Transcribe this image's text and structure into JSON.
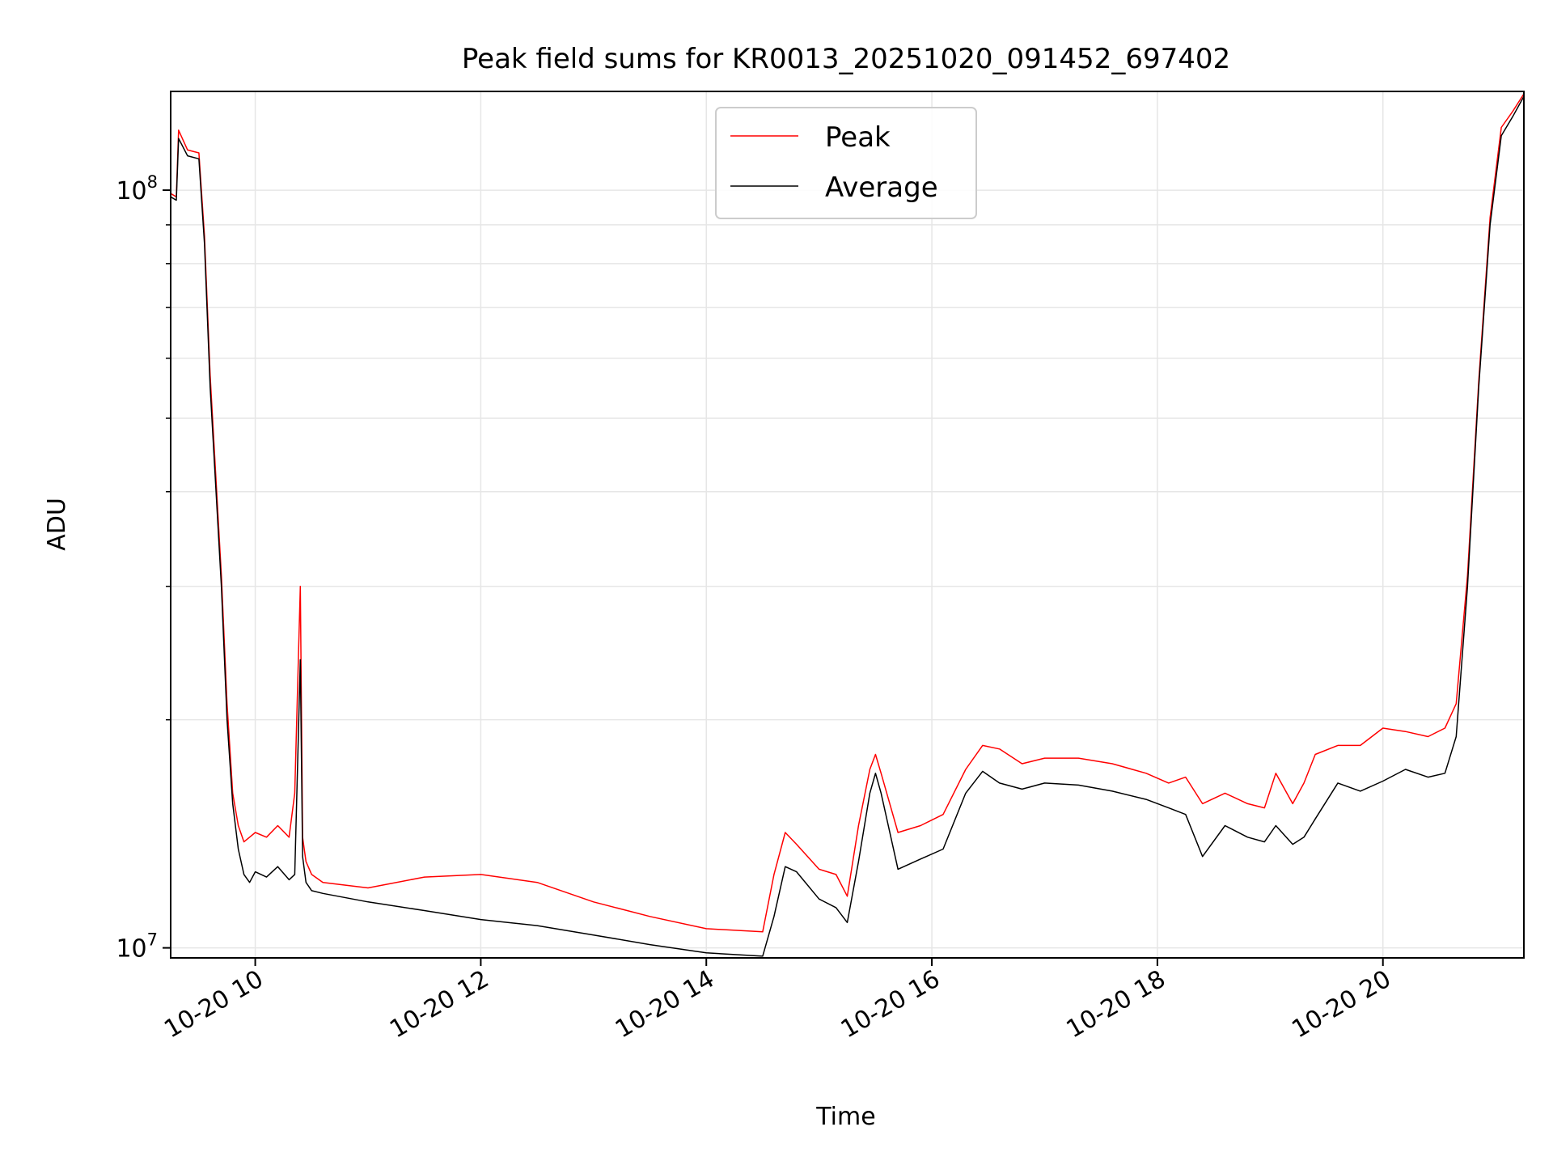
{
  "chart_data": {
    "type": "line",
    "title": "Peak field sums for KR0013_20251020_091452_697402",
    "xlabel": "Time",
    "ylabel": "ADU",
    "yscale": "log",
    "xlim": [
      9.25,
      21.25
    ],
    "ylim": [
      9700000,
      135000000
    ],
    "x_ticks": [
      {
        "value": 10,
        "label": "10-20 10"
      },
      {
        "value": 12,
        "label": "10-20 12"
      },
      {
        "value": 14,
        "label": "10-20 14"
      },
      {
        "value": 16,
        "label": "10-20 16"
      },
      {
        "value": 18,
        "label": "10-20 18"
      },
      {
        "value": 20,
        "label": "10-20 20"
      }
    ],
    "y_major_ticks": [
      {
        "value": 10000000,
        "base": "10",
        "exp": "7"
      },
      {
        "value": 100000000,
        "base": "10",
        "exp": "8"
      }
    ],
    "y_minor_ticks": [
      20000000,
      30000000,
      40000000,
      50000000,
      60000000,
      70000000,
      80000000,
      90000000
    ],
    "grid": true,
    "legend": {
      "placement": "top-center",
      "entries": [
        "Peak",
        "Average"
      ]
    },
    "series": [
      {
        "name": "Average",
        "color": "#000000",
        "x": [
          9.25,
          9.3,
          9.32,
          9.4,
          9.5,
          9.55,
          9.6,
          9.7,
          9.75,
          9.8,
          9.85,
          9.9,
          9.95,
          10.0,
          10.1,
          10.2,
          10.3,
          10.35,
          10.4,
          10.42,
          10.45,
          10.5,
          10.6,
          11.0,
          11.5,
          12.0,
          12.5,
          13.0,
          13.5,
          14.0,
          14.5,
          14.6,
          14.7,
          14.8,
          15.0,
          15.15,
          15.25,
          15.35,
          15.45,
          15.5,
          15.55,
          15.7,
          15.9,
          16.1,
          16.3,
          16.45,
          16.6,
          16.8,
          17.0,
          17.3,
          17.6,
          17.9,
          18.1,
          18.25,
          18.4,
          18.6,
          18.8,
          18.95,
          19.05,
          19.2,
          19.3,
          19.4,
          19.6,
          19.8,
          20.0,
          20.2,
          20.4,
          20.55,
          20.65,
          20.75,
          20.85,
          20.95,
          21.05,
          21.15,
          21.25
        ],
        "y": [
          98000000,
          97000000,
          117000000,
          111000000,
          110000000,
          85000000,
          55000000,
          30000000,
          20000000,
          15500000,
          13500000,
          12500000,
          12200000,
          12600000,
          12400000,
          12800000,
          12300000,
          12500000,
          24000000,
          13200000,
          12200000,
          11900000,
          11800000,
          11500000,
          11200000,
          10900000,
          10700000,
          10400000,
          10100000,
          9850000,
          9750000,
          11000000,
          12800000,
          12600000,
          11600000,
          11300000,
          10800000,
          13000000,
          16000000,
          17000000,
          16000000,
          12700000,
          13100000,
          13500000,
          16000000,
          17100000,
          16500000,
          16200000,
          16500000,
          16400000,
          16100000,
          15700000,
          15300000,
          15000000,
          13200000,
          14500000,
          14000000,
          13800000,
          14500000,
          13700000,
          14000000,
          14800000,
          16500000,
          16100000,
          16600000,
          17200000,
          16800000,
          17000000,
          19000000,
          30000000,
          55000000,
          90000000,
          118000000,
          125000000,
          133000000
        ]
      },
      {
        "name": "Peak",
        "color": "#ff0000",
        "x": [
          9.25,
          9.3,
          9.32,
          9.4,
          9.5,
          9.55,
          9.6,
          9.7,
          9.75,
          9.8,
          9.85,
          9.9,
          9.95,
          10.0,
          10.1,
          10.2,
          10.3,
          10.35,
          10.4,
          10.42,
          10.45,
          10.5,
          10.6,
          11.0,
          11.5,
          12.0,
          12.5,
          13.0,
          13.5,
          14.0,
          14.5,
          14.6,
          14.7,
          14.8,
          15.0,
          15.15,
          15.25,
          15.35,
          15.45,
          15.5,
          15.55,
          15.7,
          15.9,
          16.1,
          16.3,
          16.45,
          16.6,
          16.8,
          17.0,
          17.3,
          17.6,
          17.9,
          18.1,
          18.25,
          18.4,
          18.6,
          18.8,
          18.95,
          19.05,
          19.2,
          19.3,
          19.4,
          19.6,
          19.8,
          20.0,
          20.2,
          20.4,
          20.55,
          20.65,
          20.75,
          20.85,
          20.95,
          21.05,
          21.15,
          21.25
        ],
        "y": [
          99000000,
          98000000,
          120000000,
          113000000,
          112000000,
          87000000,
          57000000,
          31000000,
          21000000,
          16000000,
          14500000,
          13800000,
          14000000,
          14200000,
          14000000,
          14500000,
          14000000,
          16000000,
          30000000,
          14000000,
          13000000,
          12500000,
          12200000,
          12000000,
          12400000,
          12500000,
          12200000,
          11500000,
          11000000,
          10600000,
          10500000,
          12500000,
          14200000,
          13700000,
          12700000,
          12500000,
          11700000,
          14500000,
          17200000,
          18000000,
          17000000,
          14200000,
          14500000,
          15000000,
          17200000,
          18500000,
          18300000,
          17500000,
          17800000,
          17800000,
          17500000,
          17000000,
          16500000,
          16800000,
          15500000,
          16000000,
          15500000,
          15300000,
          17000000,
          15500000,
          16500000,
          18000000,
          18500000,
          18500000,
          19500000,
          19300000,
          19000000,
          19500000,
          21000000,
          31000000,
          56000000,
          92000000,
          121000000,
          127000000,
          134000000
        ]
      }
    ]
  }
}
